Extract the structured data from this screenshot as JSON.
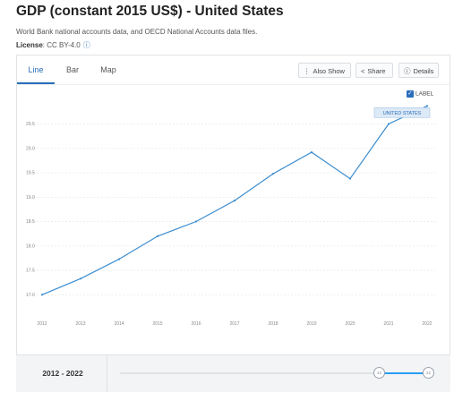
{
  "header": {
    "title": "GDP (constant 2015 US$) - United States",
    "source": "World Bank national accounts data, and OECD National Accounts data files.",
    "license_label": "License",
    "license_value": ": CC BY-4.0"
  },
  "tabs": [
    {
      "label": "Line",
      "active": true
    },
    {
      "label": "Bar",
      "active": false
    },
    {
      "label": "Map",
      "active": false
    }
  ],
  "toolbar": {
    "also_show": "Also Show",
    "share": "Share",
    "details": "Details"
  },
  "label_toggle": {
    "label": "LABEL",
    "checked": true
  },
  "series_label": "UNITED STATES",
  "colors": {
    "accent": "#2a6ebb",
    "line": "#3b8ccf",
    "slider": "#2a9df4"
  },
  "chart_data": {
    "type": "line",
    "title": "",
    "xlabel": "",
    "ylabel": "",
    "x": [
      "2012",
      "2013",
      "2014",
      "2015",
      "2016",
      "2017",
      "2018",
      "2019",
      "2020",
      "2021",
      "2022"
    ],
    "series": [
      {
        "name": "UNITED STATES",
        "values": [
          17.0,
          17.33,
          17.73,
          18.2,
          18.5,
          18.93,
          19.48,
          19.92,
          19.38,
          20.5,
          20.87
        ]
      }
    ],
    "y_ticks": [
      "17.0",
      "17.5",
      "18.0",
      "18.5",
      "19.0",
      "19.5",
      "20.0",
      "20.5"
    ],
    "ylim": [
      16.95,
      20.95
    ],
    "grid": true,
    "legend": "none"
  },
  "range": {
    "label": "2012 - 2022",
    "start_handle": "12",
    "end_handle": "22"
  }
}
